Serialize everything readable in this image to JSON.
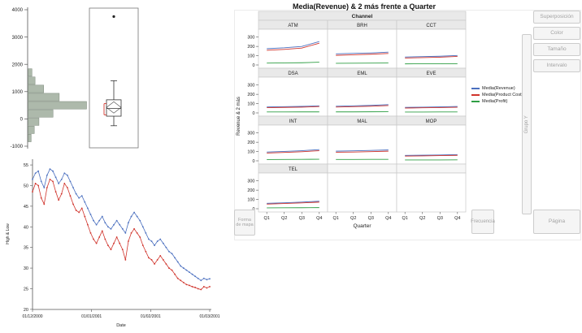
{
  "colors": {
    "revenue": "#4a6fbf",
    "cost": "#d0342c",
    "profit": "#2f9e44",
    "hist_fill": "#adb9ab",
    "hist_stroke": "#7c897b",
    "axis": "#555555",
    "header_bg": "#e9e9e9",
    "header_border": "#c8c8c8",
    "panel_border": "#c8c8c8",
    "bracket_red": "#d0342c"
  },
  "graph_builder": {
    "title": "Media(Revenue) & 2 más frente a Quarter",
    "dropzones": {
      "superposicion": "Superposición",
      "color": "Color",
      "tamano": "Tamaño",
      "intervalo": "Intervalo",
      "grupo_y": "Grupo Y",
      "frecuencia": "Frecuencia",
      "pagina": "Página",
      "forma_mapa": "Forma de mapa"
    },
    "legend": [
      {
        "label": "Media(Revenue)",
        "color": "#4a6fbf"
      },
      {
        "label": "Media(Product Cost)",
        "color": "#d0342c"
      },
      {
        "label": "Media(Profit)",
        "color": "#2f9e44"
      }
    ]
  },
  "chart_data": [
    {
      "id": "distribution",
      "type": "histogram-boxplot",
      "orientation": "horizontal",
      "axis": {
        "min": -1000,
        "max": 4000,
        "ticks": [
          4000,
          3000,
          2000,
          1000,
          0,
          -1000
        ]
      },
      "bin_width": 300,
      "bins": [
        {
          "center": 1700,
          "count": 5
        },
        {
          "center": 1400,
          "count": 9
        },
        {
          "center": 1100,
          "count": 20
        },
        {
          "center": 800,
          "count": 40
        },
        {
          "center": 500,
          "count": 75
        },
        {
          "center": 200,
          "count": 32
        },
        {
          "center": -100,
          "count": 14
        },
        {
          "center": -400,
          "count": 8
        },
        {
          "center": -700,
          "count": 4
        }
      ],
      "boxplot": {
        "whisker_low": -250,
        "q1": 100,
        "median": 380,
        "q3": 700,
        "whisker_high": 1400,
        "mean": 420,
        "outliers": [
          3750
        ],
        "shortest_half": [
          150,
          560
        ]
      }
    },
    {
      "id": "high_low",
      "type": "line",
      "xlabel": "Date",
      "ylabel": "High & Low",
      "ylim": [
        20,
        56
      ],
      "y_ticks": [
        55,
        50,
        45,
        40,
        35,
        30,
        25,
        20
      ],
      "x_tick_labels": [
        "01/12/2000",
        "01/01/2001",
        "01/02/2001",
        "01/03/2001"
      ],
      "series": [
        {
          "name": "High",
          "color": "#4a6fbf",
          "values": [
            51.5,
            53.0,
            53.5,
            51.0,
            49.5,
            52.5,
            54.0,
            53.5,
            52.0,
            50.5,
            51.5,
            53.0,
            52.5,
            51.0,
            49.5,
            48.0,
            47.0,
            47.5,
            46.0,
            44.5,
            43.0,
            41.5,
            40.5,
            41.5,
            42.5,
            41.0,
            40.0,
            39.5,
            40.5,
            41.5,
            40.5,
            39.5,
            38.5,
            41.0,
            42.5,
            43.5,
            42.5,
            41.5,
            40.0,
            38.5,
            37.0,
            36.5,
            35.5,
            36.5,
            37.0,
            36.0,
            35.0,
            34.0,
            33.5,
            32.5,
            31.5,
            30.5,
            30.0,
            29.5,
            29.0,
            28.5,
            28.0,
            27.5,
            27.0,
            27.5,
            27.2,
            27.4
          ]
        },
        {
          "name": "Low",
          "color": "#d0342c",
          "values": [
            48.5,
            50.5,
            50.0,
            47.0,
            45.5,
            49.5,
            51.5,
            51.0,
            48.5,
            46.5,
            48.0,
            50.5,
            49.5,
            47.5,
            45.5,
            44.0,
            43.5,
            44.5,
            42.5,
            40.5,
            38.5,
            37.0,
            36.0,
            37.5,
            39.0,
            37.0,
            35.5,
            34.5,
            36.0,
            37.5,
            36.0,
            34.5,
            32.0,
            36.5,
            38.5,
            39.5,
            38.5,
            37.5,
            35.5,
            34.0,
            32.5,
            32.0,
            31.0,
            32.0,
            33.0,
            32.0,
            31.0,
            30.0,
            29.5,
            28.5,
            27.5,
            27.0,
            26.5,
            26.0,
            25.8,
            25.5,
            25.3,
            25.0,
            24.8,
            25.5,
            25.2,
            25.5
          ]
        }
      ]
    },
    {
      "id": "trellis",
      "type": "line-trellis",
      "title": "Media(Revenue) & 2 más frente a Quarter",
      "facet_label": "Channel",
      "xlabel": "Quarter",
      "ylabel": "Revenue & 2 más",
      "categories": [
        "Q1",
        "Q2",
        "Q3",
        "Q4"
      ],
      "ylim": [
        0,
        350
      ],
      "y_ticks": [
        300,
        200,
        100,
        0
      ],
      "grid_columns": 3,
      "panels": [
        {
          "name": "ATM",
          "series": {
            "revenue": [
              175,
              185,
              200,
              252
            ],
            "cost": [
              158,
              168,
              182,
              235
            ],
            "profit": [
              20,
              22,
              24,
              30
            ]
          }
        },
        {
          "name": "BRH",
          "series": {
            "revenue": [
              120,
              125,
              130,
              138
            ],
            "cost": [
              104,
              110,
              116,
              124
            ],
            "profit": [
              18,
              19,
              20,
              21
            ]
          }
        },
        {
          "name": "CCT",
          "series": {
            "revenue": [
              86,
              90,
              94,
              102
            ],
            "cost": [
              75,
              79,
              84,
              92
            ],
            "profit": [
              12,
              13,
              13,
              14
            ]
          }
        },
        {
          "name": "DSA",
          "series": {
            "revenue": [
              64,
              67,
              70,
              76
            ],
            "cost": [
              56,
              59,
              62,
              68
            ],
            "profit": [
              10,
              10,
              11,
              11
            ]
          }
        },
        {
          "name": "EML",
          "series": {
            "revenue": [
              72,
              76,
              81,
              89
            ],
            "cost": [
              63,
              67,
              72,
              79
            ],
            "profit": [
              11,
              11,
              12,
              13
            ]
          }
        },
        {
          "name": "EVE",
          "series": {
            "revenue": [
              60,
              62,
              65,
              69
            ],
            "cost": [
              52,
              55,
              57,
              61
            ],
            "profit": [
              9,
              9,
              10,
              10
            ]
          }
        },
        {
          "name": "INT",
          "series": {
            "revenue": [
              95,
              101,
              109,
              121
            ],
            "cost": [
              84,
              90,
              98,
              109
            ],
            "profit": [
              14,
              15,
              16,
              17
            ]
          }
        },
        {
          "name": "MAL",
          "series": {
            "revenue": [
              104,
              108,
              112,
              117
            ],
            "cost": [
              92,
              95,
              99,
              104
            ],
            "profit": [
              15,
              15,
              16,
              16
            ]
          }
        },
        {
          "name": "MOP",
          "series": {
            "revenue": [
              58,
              61,
              63,
              67
            ],
            "cost": [
              51,
              53,
              56,
              59
            ],
            "profit": [
              9,
              9,
              9,
              10
            ]
          }
        },
        {
          "name": "TEL",
          "series": {
            "revenue": [
              58,
              64,
              72,
              81
            ],
            "cost": [
              50,
              56,
              63,
              71
            ],
            "profit": [
              9,
              10,
              11,
              12
            ]
          }
        }
      ]
    }
  ]
}
